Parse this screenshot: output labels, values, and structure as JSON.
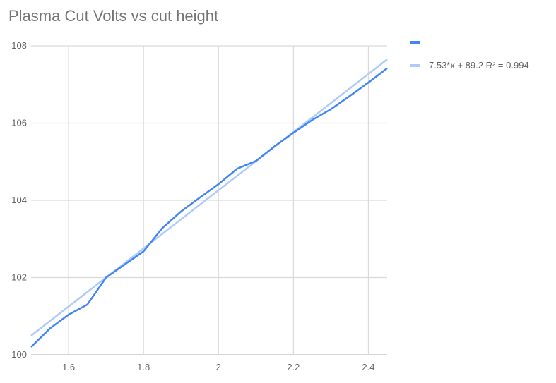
{
  "chart_data": {
    "type": "line",
    "title": "Plasma Cut Volts vs cut height",
    "xlabel": "",
    "ylabel": "",
    "xlim": [
      1.5,
      2.45
    ],
    "ylim": [
      100,
      108
    ],
    "grid": true,
    "legend_position": "right",
    "x_ticks": [
      "1.6",
      "1.8",
      "2",
      "2.2",
      "2.4"
    ],
    "y_ticks": [
      "100",
      "102",
      "104",
      "106",
      "108"
    ],
    "series": [
      {
        "name": "",
        "color": "#4285f4",
        "x": [
          1.5,
          1.55,
          1.6,
          1.65,
          1.7,
          1.75,
          1.8,
          1.85,
          1.9,
          1.95,
          2.0,
          2.05,
          2.1,
          2.15,
          2.2,
          2.25,
          2.3,
          2.35,
          2.4,
          2.45
        ],
        "y": [
          100.2,
          100.68,
          101.04,
          101.3,
          102.0,
          102.34,
          102.68,
          103.28,
          103.71,
          104.07,
          104.42,
          104.82,
          105.02,
          105.4,
          105.75,
          106.08,
          106.36,
          106.7,
          107.05,
          107.42
        ]
      },
      {
        "name": "7.53*x + 89.2 R² = 0.994",
        "type": "trendline",
        "color": "#aecbfa",
        "slope": 7.53,
        "intercept": 89.2
      }
    ]
  }
}
